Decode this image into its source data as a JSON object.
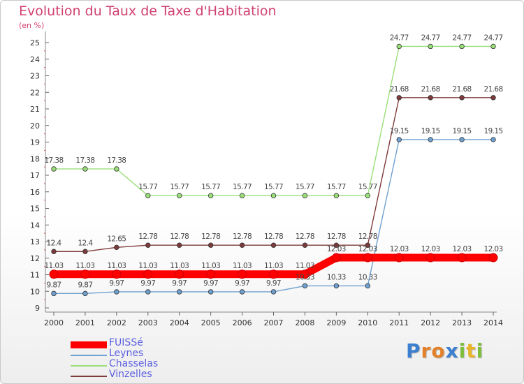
{
  "title": "Evolution du Taux de Taxe d'Habitation",
  "unit": "(en %)",
  "logo": {
    "letters": [
      {
        "ch": "P",
        "color": "#3c7fd0"
      },
      {
        "ch": "r",
        "color": "#e3812a"
      },
      {
        "ch": "o",
        "color": "#e3812a"
      },
      {
        "ch": "x",
        "color": "#3c7fd0"
      },
      {
        "ch": "i",
        "color": "#7dbf3a"
      },
      {
        "ch": "t",
        "color": "#e8b52b"
      },
      {
        "ch": "i",
        "color": "#7dbf3a"
      }
    ]
  },
  "chart_data": {
    "type": "line",
    "x": [
      "2000",
      "2001",
      "2002",
      "2003",
      "2004",
      "2005",
      "2006",
      "2007",
      "2008",
      "2009",
      "2010",
      "2011",
      "2012",
      "2013",
      "2014"
    ],
    "ylim": [
      9,
      25
    ],
    "yticks": [
      "9",
      "10",
      "11",
      "12",
      "13",
      "14",
      "15",
      "16",
      "17",
      "18",
      "19",
      "20",
      "21",
      "22",
      "23",
      "24",
      "25"
    ],
    "grid": false,
    "legend_position": "bottom-left",
    "series": [
      {
        "name": "FUISSé",
        "color": "#ff0000",
        "values": [
          11.03,
          11.03,
          11.03,
          11.03,
          11.03,
          11.03,
          11.03,
          11.03,
          11.03,
          12.03,
          12.03,
          12.03,
          12.03,
          12.03,
          12.03
        ],
        "labels": [
          "11.03",
          "11.03",
          "11.03",
          "11.03",
          "11.03",
          "11.03",
          "11.03",
          "11.03",
          "11.03",
          "12.03",
          "12.03",
          "12.03",
          "12.03",
          "12.03",
          "12.03"
        ]
      },
      {
        "name": "Leynes",
        "color": "#6ea1cf",
        "values": [
          9.87,
          9.87,
          9.97,
          9.97,
          9.97,
          9.97,
          9.97,
          9.97,
          10.33,
          10.33,
          10.33,
          19.15,
          19.15,
          19.15,
          19.15
        ],
        "labels": [
          "9.87",
          "9.87",
          "9.97",
          "9.97",
          "9.97",
          "9.97",
          "9.97",
          "9.97",
          "10.33",
          "10.33",
          "10.33",
          "19.15",
          "19.15",
          "19.15",
          "19.15"
        ]
      },
      {
        "name": "Chasselas",
        "color": "#9adf7a",
        "values": [
          17.38,
          17.38,
          17.38,
          15.77,
          15.77,
          15.77,
          15.77,
          15.77,
          15.77,
          15.77,
          15.77,
          24.77,
          24.77,
          24.77,
          24.77
        ],
        "labels": [
          "17.38",
          "17.38",
          "17.38",
          "15.77",
          "15.77",
          "15.77",
          "15.77",
          "15.77",
          "15.77",
          "15.77",
          "15.77",
          "24.77",
          "24.77",
          "24.77",
          "24.77"
        ]
      },
      {
        "name": "Vinzelles",
        "color": "#7f3b3b",
        "values": [
          12.4,
          12.4,
          12.65,
          12.78,
          12.78,
          12.78,
          12.78,
          12.78,
          12.78,
          12.78,
          12.78,
          21.68,
          21.68,
          21.68,
          21.68
        ],
        "labels": [
          "12.4",
          "12.4",
          "12.65",
          "12.78",
          "12.78",
          "12.78",
          "12.78",
          "12.78",
          "12.78",
          "12.78",
          "12.78",
          "21.68",
          "21.68",
          "21.68",
          "21.68"
        ]
      }
    ]
  }
}
